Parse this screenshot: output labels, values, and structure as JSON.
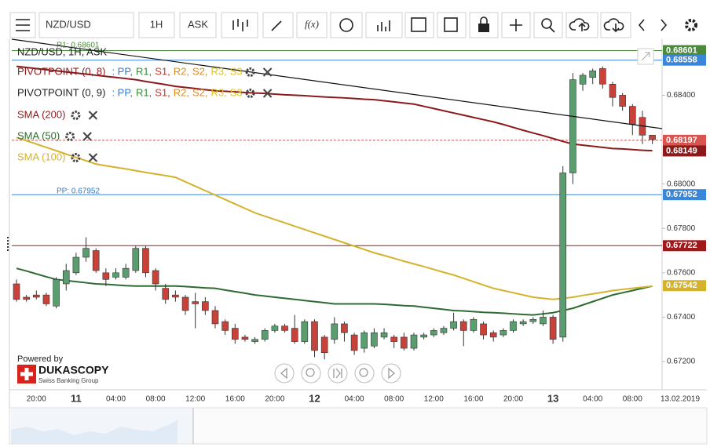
{
  "toolbar": {
    "symbol": "NZD/USD",
    "period": "1H",
    "side": "ASK",
    "fx": "f(x)"
  },
  "branding": {
    "powered": "Powered by",
    "name": "DUKASCOPY",
    "tagline": "Swiss Banking Group"
  },
  "chart_data": {
    "type": "candlestick",
    "legend_title": "NZD/USD, 1H, ASK",
    "pivots": [
      "PIVOTPOINT (0, 8)",
      "PIVOTPOINT (0, 9)"
    ],
    "pivot_fields": [
      ": PP,",
      "R1,",
      "S1,",
      "R2,",
      "S2,",
      "R3,",
      "S3"
    ],
    "pivot_colors": [
      "#2f7bd1",
      "#3a8a3a",
      "#c0392b",
      "#e08a1e",
      "#e08a1e",
      "#e2c619",
      "#e2c619"
    ],
    "annotations": [
      {
        "text": "R1: 0.68601",
        "color": "#4a8a3a"
      },
      {
        "text": "PP: 0.67952",
        "color": "#2f7bd1"
      }
    ],
    "date_label": "13.02.2019",
    "categories": [
      null,
      null,
      "20:00",
      null,
      null,
      null,
      "11",
      null,
      null,
      null,
      "04:00",
      null,
      null,
      null,
      "08:00",
      null,
      null,
      null,
      "12:00",
      null,
      null,
      null,
      "16:00",
      null,
      null,
      null,
      "20:00",
      null,
      null,
      null,
      "12",
      null,
      null,
      null,
      "04:00",
      null,
      null,
      null,
      "08:00",
      null,
      null,
      null,
      "12:00",
      null,
      null,
      null,
      "16:00",
      null,
      null,
      null,
      "20:00",
      null,
      null,
      null,
      "13",
      null,
      null,
      null,
      "04:00",
      null,
      null,
      null,
      "08:00",
      null,
      null
    ],
    "up_color": "#5a9e70",
    "down_color": "#c8423a",
    "open": [
      0.6755,
      0.6749,
      0.675,
      0.675,
      0.6745,
      0.6755,
      0.676,
      0.6767,
      0.677,
      0.676,
      0.6758,
      0.6758,
      0.6761,
      0.6771,
      0.6761,
      0.6753,
      0.675,
      0.6749,
      0.6747,
      0.6747,
      0.6743,
      0.6738,
      0.6735,
      0.6731,
      0.6729,
      0.673,
      0.6734,
      0.6736,
      0.6735,
      0.6729,
      0.6738,
      0.6731,
      0.673,
      0.6737,
      0.6732,
      0.6726,
      0.6727,
      0.6731,
      0.6731,
      0.6731,
      0.6726,
      0.6731,
      0.6732,
      0.6733,
      0.6735,
      0.6738,
      0.6734,
      0.6737,
      0.6733,
      0.6732,
      0.6734,
      0.6737,
      0.6738,
      0.6737,
      0.674,
      0.6731,
      0.6805,
      0.6845,
      0.6848,
      0.6852,
      0.6845,
      0.684,
      0.6835,
      0.683,
      0.6822
    ],
    "high": [
      0.6757,
      0.675,
      0.6752,
      0.6751,
      0.6758,
      0.6764,
      0.6769,
      0.6776,
      0.6771,
      0.6762,
      0.6762,
      0.6764,
      0.6772,
      0.6772,
      0.6762,
      0.6755,
      0.6752,
      0.675,
      0.6751,
      0.6749,
      0.6745,
      0.6739,
      0.6737,
      0.6732,
      0.6731,
      0.6735,
      0.6737,
      0.6737,
      0.6741,
      0.6739,
      0.6739,
      0.6732,
      0.674,
      0.6738,
      0.6733,
      0.6734,
      0.6735,
      0.6735,
      0.6732,
      0.6733,
      0.6733,
      0.6733,
      0.6735,
      0.6736,
      0.6742,
      0.6739,
      0.674,
      0.6738,
      0.6734,
      0.6735,
      0.6739,
      0.6739,
      0.674,
      0.6743,
      0.6741,
      0.6808,
      0.685,
      0.685,
      0.6852,
      0.6853,
      0.6846,
      0.6841,
      0.6836,
      0.6833,
      0.6822
    ],
    "low": [
      0.6747,
      0.6747,
      0.6748,
      0.6745,
      0.6744,
      0.6752,
      0.6759,
      0.6765,
      0.676,
      0.6754,
      0.6757,
      0.6757,
      0.676,
      0.6758,
      0.6752,
      0.6746,
      0.6747,
      0.6741,
      0.6735,
      0.6741,
      0.6735,
      0.6732,
      0.6728,
      0.6729,
      0.6728,
      0.6729,
      0.6733,
      0.6733,
      0.6728,
      0.6728,
      0.6722,
      0.6721,
      0.6728,
      0.6729,
      0.6723,
      0.6724,
      0.6726,
      0.673,
      0.6726,
      0.6725,
      0.6725,
      0.673,
      0.6731,
      0.6732,
      0.6734,
      0.6727,
      0.6733,
      0.673,
      0.6729,
      0.6731,
      0.6733,
      0.6736,
      0.6737,
      0.6736,
      0.6728,
      0.6729,
      0.68,
      0.6842,
      0.6845,
      0.6843,
      0.6835,
      0.6833,
      0.6822,
      0.6818,
      0.6818
    ],
    "close": [
      0.6748,
      0.6748,
      0.6749,
      0.6746,
      0.6757,
      0.6761,
      0.6767,
      0.6771,
      0.6761,
      0.6757,
      0.676,
      0.6762,
      0.6771,
      0.676,
      0.6755,
      0.6748,
      0.6749,
      0.6743,
      0.6746,
      0.6743,
      0.6737,
      0.6734,
      0.673,
      0.673,
      0.673,
      0.6734,
      0.6736,
      0.6734,
      0.6729,
      0.6738,
      0.6725,
      0.6724,
      0.6737,
      0.6733,
      0.6725,
      0.6733,
      0.6733,
      0.6733,
      0.6729,
      0.6726,
      0.6732,
      0.6732,
      0.6734,
      0.6735,
      0.6738,
      0.6734,
      0.6739,
      0.6732,
      0.6731,
      0.6734,
      0.6738,
      0.6738,
      0.6739,
      0.674,
      0.673,
      0.6805,
      0.6847,
      0.6849,
      0.6851,
      0.6845,
      0.6839,
      0.6835,
      0.6827,
      0.6822,
      0.682
    ],
    "series": [
      {
        "name": "SMA (200)",
        "color": "#8b1a1a",
        "values": [
          0.6853,
          0.68525,
          0.6852,
          0.68515,
          0.6851,
          0.68505,
          0.685,
          0.68495,
          0.6849,
          0.68485,
          0.6848,
          0.68475,
          0.6847,
          0.68462,
          0.68455,
          0.68448,
          0.6844,
          0.68435,
          0.6843,
          0.68425,
          0.6842,
          0.68418,
          0.68415,
          0.68412,
          0.6841,
          0.68408,
          0.68405,
          0.68402,
          0.684,
          0.68398,
          0.68395,
          0.68392,
          0.6839,
          0.68388,
          0.68385,
          0.68382,
          0.6838,
          0.68375,
          0.6837,
          0.68365,
          0.6836,
          0.6835,
          0.6834,
          0.6833,
          0.6832,
          0.6831,
          0.683,
          0.6829,
          0.6828,
          0.68268,
          0.68255,
          0.68242,
          0.6823,
          0.68218,
          0.68205,
          0.68192,
          0.6818,
          0.68175,
          0.6817,
          0.68165,
          0.6816,
          0.68158,
          0.68155,
          0.68152,
          0.6815
        ]
      },
      {
        "name": "SMA (50)",
        "color": "#2e6b30",
        "values": [
          0.6762,
          0.67608,
          0.67595,
          0.67582,
          0.6757,
          0.67565,
          0.6756,
          0.67555,
          0.6755,
          0.67548,
          0.67545,
          0.67542,
          0.6754,
          0.6754,
          0.6754,
          0.6754,
          0.6754,
          0.67538,
          0.67535,
          0.67532,
          0.6753,
          0.67522,
          0.67515,
          0.67508,
          0.675,
          0.67495,
          0.6749,
          0.67485,
          0.6748,
          0.67475,
          0.6747,
          0.67465,
          0.6746,
          0.6746,
          0.6746,
          0.6746,
          0.6746,
          0.67458,
          0.67455,
          0.67452,
          0.6745,
          0.67445,
          0.6744,
          0.67435,
          0.6743,
          0.67428,
          0.67425,
          0.67422,
          0.6742,
          0.67418,
          0.67415,
          0.67412,
          0.6741,
          0.67415,
          0.6742,
          0.6743,
          0.6744,
          0.67455,
          0.6747,
          0.67485,
          0.675,
          0.6751,
          0.6752,
          0.6753,
          0.6754
        ]
      },
      {
        "name": "SMA (100)",
        "color": "#d4b22c",
        "values": [
          0.6821,
          0.68195,
          0.6818,
          0.68165,
          0.6815,
          0.68135,
          0.6812,
          0.68105,
          0.6809,
          0.68082,
          0.68075,
          0.68068,
          0.6806,
          0.68052,
          0.68045,
          0.68038,
          0.6803,
          0.6801,
          0.6799,
          0.6797,
          0.6795,
          0.6793,
          0.6791,
          0.6789,
          0.6787,
          0.67855,
          0.6784,
          0.67825,
          0.6781,
          0.67795,
          0.6778,
          0.67765,
          0.6775,
          0.67735,
          0.6772,
          0.67705,
          0.6769,
          0.67678,
          0.67665,
          0.67652,
          0.6764,
          0.67628,
          0.67615,
          0.67602,
          0.6759,
          0.67575,
          0.6756,
          0.67545,
          0.6753,
          0.6752,
          0.6751,
          0.675,
          0.6749,
          0.67485,
          0.6748,
          0.67485,
          0.6749,
          0.67498,
          0.67505,
          0.67512,
          0.6752,
          0.67525,
          0.6753,
          0.67535,
          0.6754
        ]
      }
    ],
    "levels": [
      {
        "value": 0.68601,
        "color": "#4a8a3a",
        "line": "solid"
      },
      {
        "value": 0.68558,
        "color": "#3a86d8",
        "line": "solid"
      },
      {
        "value": 0.68197,
        "color": "#d9534f",
        "line": "dotted"
      },
      {
        "value": 0.68149,
        "color": "#8b1a1a",
        "line": "none"
      },
      {
        "value": 0.67952,
        "color": "#3a86d8",
        "line": "solid"
      },
      {
        "value": 0.67722,
        "color": "#a01818",
        "line": "solid"
      },
      {
        "value": 0.67542,
        "color": "#d4b22c",
        "line": "none"
      }
    ],
    "ylim": [
      0.6708,
      0.6867
    ],
    "yticks": [
      {
        "value": 0.684,
        "label": "0.68400"
      },
      {
        "value": 0.68,
        "label": "0.68000"
      },
      {
        "value": 0.678,
        "label": "0.67800"
      },
      {
        "value": 0.676,
        "label": "0.67600"
      },
      {
        "value": 0.674,
        "label": "0.67400"
      },
      {
        "value": 0.672,
        "label": "0.67200"
      }
    ]
  }
}
